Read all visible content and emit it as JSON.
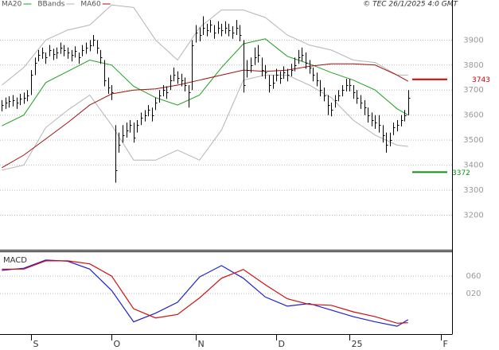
{
  "chart_data": [
    {
      "type": "ohlc",
      "source": "© TEC 26/1/2025 4:0 GMT",
      "xlim": [
        -0.5,
        123
      ],
      "ylim": [
        3065,
        4060
      ],
      "yticks": [
        3200,
        3300,
        3400,
        3500,
        3600,
        3700,
        3800,
        3900
      ],
      "grid": true,
      "bar_color": "#000000",
      "x": [
        0,
        1,
        2,
        3,
        4,
        5,
        6,
        7,
        8,
        9,
        10,
        11,
        12,
        13,
        14,
        15,
        16,
        17,
        18,
        19,
        20,
        21,
        22,
        23,
        24,
        25,
        26,
        27,
        28,
        29,
        30,
        31,
        32,
        33,
        34,
        35,
        36,
        37,
        38,
        39,
        40,
        41,
        42,
        43,
        44,
        45,
        46,
        47,
        48,
        49,
        50,
        51,
        52,
        53,
        54,
        55,
        56,
        57,
        58,
        59,
        60,
        61,
        62,
        63,
        64,
        65,
        66,
        67,
        68,
        69,
        70,
        71,
        72,
        73,
        74,
        75,
        76,
        77,
        78,
        79,
        80,
        81,
        82,
        83,
        84,
        85,
        86,
        87,
        88,
        89,
        90,
        91,
        92,
        93,
        94,
        95,
        96,
        97,
        98,
        99,
        100,
        101,
        102,
        103,
        104,
        105,
        106,
        107,
        108,
        109,
        110,
        111
      ],
      "high": [
        3660,
        3670,
        3675,
        3680,
        3670,
        3685,
        3690,
        3700,
        3780,
        3830,
        3860,
        3870,
        3850,
        3880,
        3865,
        3870,
        3890,
        3880,
        3870,
        3860,
        3875,
        3850,
        3880,
        3890,
        3900,
        3920,
        3900,
        3860,
        3820,
        3750,
        3720,
        3560,
        3530,
        3560,
        3570,
        3580,
        3570,
        3580,
        3610,
        3620,
        3640,
        3630,
        3670,
        3700,
        3720,
        3715,
        3760,
        3790,
        3775,
        3765,
        3750,
        3720,
        3900,
        3960,
        3950,
        3995,
        3965,
        3980,
        3960,
        3975,
        3965,
        3975,
        3965,
        3955,
        3980,
        3960,
        3900,
        3820,
        3830,
        3870,
        3880,
        3830,
        3800,
        3760,
        3760,
        3785,
        3775,
        3795,
        3785,
        3805,
        3830,
        3860,
        3870,
        3850,
        3820,
        3790,
        3770,
        3740,
        3710,
        3680,
        3650,
        3680,
        3700,
        3720,
        3745,
        3745,
        3720,
        3700,
        3680,
        3660,
        3630,
        3610,
        3600,
        3600,
        3560,
        3530,
        3530,
        3570,
        3580,
        3600,
        3620,
        3700
      ],
      "low": [
        3615,
        3625,
        3630,
        3635,
        3625,
        3640,
        3645,
        3655,
        3680,
        3760,
        3815,
        3825,
        3805,
        3835,
        3820,
        3825,
        3845,
        3835,
        3825,
        3815,
        3830,
        3805,
        3835,
        3845,
        3855,
        3875,
        3845,
        3805,
        3715,
        3685,
        3660,
        3330,
        3450,
        3490,
        3510,
        3530,
        3490,
        3530,
        3560,
        3575,
        3595,
        3575,
        3620,
        3650,
        3675,
        3665,
        3700,
        3735,
        3725,
        3715,
        3695,
        3630,
        3700,
        3890,
        3895,
        3920,
        3915,
        3930,
        3905,
        3925,
        3915,
        3925,
        3915,
        3905,
        3920,
        3895,
        3690,
        3750,
        3770,
        3800,
        3810,
        3755,
        3745,
        3690,
        3705,
        3735,
        3725,
        3745,
        3735,
        3755,
        3775,
        3805,
        3815,
        3785,
        3765,
        3735,
        3715,
        3675,
        3655,
        3600,
        3595,
        3630,
        3655,
        3675,
        3695,
        3695,
        3665,
        3645,
        3625,
        3600,
        3570,
        3555,
        3545,
        3530,
        3490,
        3450,
        3475,
        3520,
        3535,
        3555,
        3575,
        3600
      ],
      "close": [
        3640,
        3650,
        3655,
        3660,
        3650,
        3665,
        3670,
        3680,
        3760,
        3810,
        3840,
        3850,
        3830,
        3860,
        3845,
        3850,
        3870,
        3860,
        3850,
        3840,
        3855,
        3830,
        3860,
        3870,
        3880,
        3900,
        3870,
        3830,
        3740,
        3710,
        3690,
        3380,
        3480,
        3520,
        3540,
        3560,
        3510,
        3560,
        3590,
        3600,
        3620,
        3600,
        3650,
        3680,
        3700,
        3690,
        3740,
        3760,
        3750,
        3740,
        3720,
        3690,
        3880,
        3930,
        3920,
        3950,
        3940,
        3960,
        3930,
        3950,
        3940,
        3950,
        3940,
        3930,
        3950,
        3920,
        3720,
        3780,
        3800,
        3830,
        3840,
        3780,
        3770,
        3720,
        3730,
        3760,
        3750,
        3770,
        3760,
        3780,
        3800,
        3830,
        3840,
        3810,
        3790,
        3760,
        3740,
        3700,
        3680,
        3640,
        3620,
        3660,
        3680,
        3700,
        3720,
        3720,
        3690,
        3670,
        3650,
        3630,
        3600,
        3580,
        3570,
        3560,
        3520,
        3480,
        3500,
        3550,
        3560,
        3580,
        3600,
        3670
      ],
      "series": [
        {
          "name": "MA20",
          "color": "#1ea01e",
          "x": [
            0,
            6,
            12,
            18,
            24,
            30,
            36,
            42,
            48,
            54,
            60,
            66,
            72,
            78,
            84,
            90,
            96,
            102,
            108,
            111
          ],
          "values": [
            3557,
            3600,
            3730,
            3775,
            3820,
            3800,
            3715,
            3670,
            3640,
            3680,
            3790,
            3885,
            3905,
            3835,
            3805,
            3770,
            3740,
            3700,
            3625,
            3600
          ]
        },
        {
          "name": "BBands",
          "color": "#b4b4b4",
          "x": [
            0,
            6,
            12,
            18,
            24,
            30,
            36,
            42,
            48,
            54,
            60,
            66,
            72,
            78,
            84,
            90,
            96,
            102,
            108,
            111
          ],
          "upper": [
            3720,
            3790,
            3900,
            3940,
            3960,
            4040,
            4030,
            3900,
            3820,
            3950,
            4020,
            4020,
            3990,
            3920,
            3880,
            3860,
            3820,
            3810,
            3760,
            3760
          ],
          "lower": [
            3380,
            3400,
            3550,
            3620,
            3680,
            3560,
            3420,
            3420,
            3460,
            3420,
            3540,
            3740,
            3760,
            3760,
            3720,
            3670,
            3580,
            3520,
            3480,
            3475
          ]
        },
        {
          "name": "MA60",
          "color": "#a01010",
          "x": [
            0,
            6,
            12,
            18,
            24,
            30,
            36,
            42,
            48,
            54,
            60,
            66,
            72,
            78,
            84,
            90,
            96,
            102,
            108,
            111
          ],
          "values": [
            3390,
            3440,
            3505,
            3570,
            3640,
            3685,
            3700,
            3705,
            3720,
            3740,
            3760,
            3780,
            3775,
            3780,
            3795,
            3805,
            3805,
            3800,
            3760,
            3735
          ]
        }
      ],
      "levels": [
        {
          "value": 3743,
          "color": "#d00000"
        },
        {
          "value": 3372,
          "color": "#109010"
        }
      ]
    },
    {
      "type": "macd",
      "title": "MACD",
      "xlim": [
        -0.5,
        123
      ],
      "xticks": [
        {
          "value": 8,
          "label": "S"
        },
        {
          "value": 30,
          "label": "O"
        },
        {
          "value": 53,
          "label": "N"
        },
        {
          "value": 75,
          "label": "D"
        },
        {
          "value": 95,
          "label": "25"
        },
        {
          "value": 120,
          "label": "F"
        }
      ],
      "ylim": [
        -73,
        113
      ],
      "yticks": [
        {
          "value": 20,
          "label": "020"
        },
        {
          "value": 60,
          "label": "060"
        }
      ],
      "grid": true,
      "series": [
        {
          "color": "#2020d0",
          "x": [
            0,
            6,
            12,
            18,
            24,
            30,
            36,
            42,
            48,
            54,
            60,
            66,
            72,
            78,
            84,
            90,
            96,
            102,
            108,
            111
          ],
          "values": [
            73,
            78,
            97,
            94,
            76,
            27,
            -45,
            -25,
            0,
            58,
            84,
            55,
            12,
            -9,
            -3,
            -18,
            -33,
            -45,
            -55,
            -40
          ]
        },
        {
          "color": "#d01010",
          "x": [
            0,
            6,
            12,
            18,
            24,
            30,
            36,
            42,
            48,
            54,
            60,
            66,
            72,
            78,
            84,
            90,
            96,
            102,
            108,
            111
          ],
          "values": [
            76,
            76,
            95,
            95,
            88,
            60,
            -15,
            -36,
            -28,
            10,
            55,
            75,
            40,
            8,
            -5,
            -7,
            -22,
            -33,
            -48,
            -47
          ]
        }
      ]
    }
  ]
}
